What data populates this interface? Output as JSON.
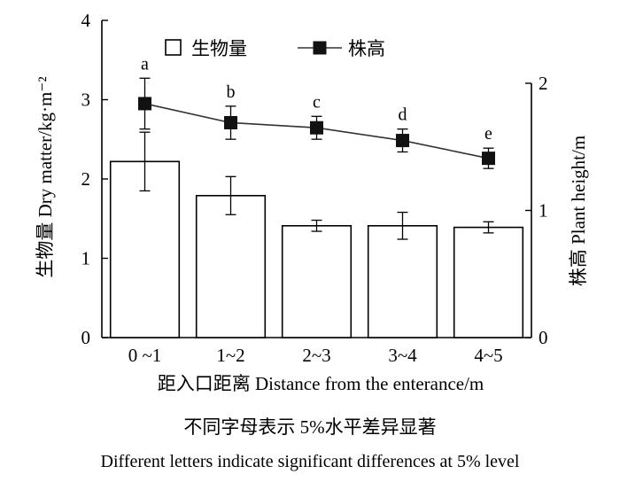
{
  "chart_data": {
    "type": "bar",
    "categories": [
      "0 ~1",
      "1~2",
      "2~3",
      "3~4",
      "4~5"
    ],
    "xlabel": "距入口距离 Distance from the enterance/m",
    "ylabel": "生物量 Dry matter/kg·m⁻²",
    "y2label": "株高 Plant height/m",
    "ylim": [
      0,
      4
    ],
    "y2lim": [
      0,
      2
    ],
    "yticks": [
      "0",
      "1",
      "2",
      "3",
      "4"
    ],
    "y2ticks": [
      "0",
      "1",
      "2"
    ],
    "legend": {
      "placement": "top",
      "bar_label": "生物量",
      "line_label": "株高"
    },
    "series": [
      {
        "name": "生物量",
        "kind": "bar",
        "axis": "left",
        "values": [
          2.22,
          1.79,
          1.41,
          1.41,
          1.39
        ],
        "errors": [
          0.37,
          0.24,
          0.07,
          0.17,
          0.07
        ]
      },
      {
        "name": "株高",
        "kind": "line",
        "axis": "right",
        "values": [
          1.84,
          1.69,
          1.65,
          1.55,
          1.41
        ],
        "errors": [
          0.2,
          0.13,
          0.09,
          0.09,
          0.08
        ],
        "letters": [
          "a",
          "b",
          "c",
          "d",
          "e"
        ]
      }
    ]
  },
  "caption": {
    "line1": "不同字母表示 5%水平差异显著",
    "line2": "Different letters indicate significant differences at 5% level"
  }
}
